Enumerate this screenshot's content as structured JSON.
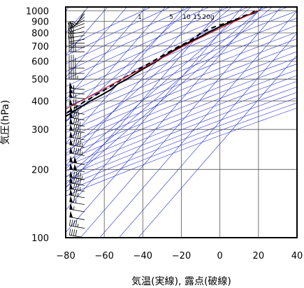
{
  "chart_data": {
    "type": "line",
    "title": "",
    "xlabel": "気温(実線), 露点(破線)",
    "ylabel": "気圧(hPa)",
    "xlim": [
      -80,
      40
    ],
    "ylim": [
      1040,
      100
    ],
    "y_scale": "log",
    "x_ticks": [
      -80,
      -60,
      -40,
      -20,
      0,
      20,
      40
    ],
    "x_tick_labels": [
      "−80",
      "−60",
      "−40",
      "−20",
      "0",
      "20",
      "40"
    ],
    "y_ticks": [
      100,
      200,
      300,
      400,
      500,
      600,
      700,
      800,
      900,
      1000
    ],
    "y_tick_labels": [
      "100",
      "200",
      "300",
      "400",
      "500",
      "600",
      "700",
      "800",
      "900",
      "1000"
    ],
    "grid": true,
    "mixing_ratio_labels": [
      "1",
      "5",
      "10",
      "15",
      "20g"
    ],
    "colors": {
      "frame": "#000000",
      "grid": "#555555",
      "background_lines": "#1f2bd6",
      "temperature": "#000000",
      "dewpoint": "#000000",
      "parcel": "#c0142c",
      "wind_barbs": "#000000"
    },
    "series": [
      {
        "key": "temperature",
        "style": "solid",
        "points": [
          [
            1000,
            19.5
          ],
          [
            975,
            18.5
          ],
          [
            950,
            15.5
          ],
          [
            925,
            14.0
          ],
          [
            900,
            11.0
          ],
          [
            875,
            9.0
          ],
          [
            850,
            7.0
          ],
          [
            825,
            5.5
          ],
          [
            800,
            3.5
          ],
          [
            775,
            2.0
          ],
          [
            750,
            0.0
          ],
          [
            725,
            -2.0
          ],
          [
            700,
            -4.0
          ],
          [
            650,
            -7.5
          ],
          [
            600,
            -10.0
          ],
          [
            550,
            -14.0
          ],
          [
            500,
            -17.5
          ],
          [
            475,
            -20.0
          ],
          [
            450,
            -21.0
          ],
          [
            425,
            -23.5
          ],
          [
            400,
            -26.5
          ],
          [
            375,
            -29.0
          ],
          [
            350,
            -31.5
          ],
          [
            325,
            -35.0
          ],
          [
            300,
            -39.0
          ],
          [
            275,
            -43.0
          ],
          [
            250,
            -47.5
          ],
          [
            225,
            -52.0
          ],
          [
            200,
            -57.0
          ],
          [
            190,
            -59.5
          ],
          [
            180,
            -59.5
          ],
          [
            170,
            -60.0
          ],
          [
            160,
            -58.0
          ],
          [
            150,
            -57.0
          ],
          [
            140,
            -57.5
          ],
          [
            130,
            -58.5
          ],
          [
            120,
            -60.0
          ],
          [
            110,
            -61.0
          ],
          [
            100,
            -60.5
          ]
        ]
      },
      {
        "key": "dewpoint",
        "style": "dashed",
        "points": [
          [
            1000,
            18.0
          ],
          [
            975,
            17.5
          ],
          [
            950,
            14.5
          ],
          [
            925,
            13.0
          ],
          [
            900,
            10.0
          ],
          [
            875,
            7.5
          ],
          [
            850,
            4.5
          ],
          [
            825,
            2.0
          ],
          [
            800,
            0.0
          ],
          [
            775,
            -0.5
          ],
          [
            750,
            -1.5
          ],
          [
            725,
            -3.0
          ],
          [
            700,
            -5.0
          ],
          [
            650,
            -8.5
          ],
          [
            600,
            -12.0
          ],
          [
            550,
            -16.0
          ],
          [
            500,
            -20.0
          ],
          [
            450,
            -24.0
          ],
          [
            400,
            -29.0
          ],
          [
            350,
            -34.0
          ],
          [
            320,
            -38.0
          ],
          [
            300,
            -41.0
          ],
          [
            285,
            -43.5
          ],
          [
            270,
            -45.5
          ],
          [
            270,
            -80.0
          ]
        ]
      },
      {
        "key": "parcel",
        "style": "solid",
        "points": [
          [
            1000,
            19.5
          ],
          [
            900,
            12.5
          ],
          [
            800,
            5.0
          ],
          [
            700,
            -3.0
          ],
          [
            600,
            -10.5
          ],
          [
            500,
            -20.0
          ],
          [
            400,
            -31.5
          ],
          [
            300,
            -46.5
          ],
          [
            250,
            -55.5
          ],
          [
            200,
            -65.5
          ],
          [
            170,
            -75.0
          ],
          [
            160,
            -80.0
          ]
        ]
      }
    ],
    "wind_barbs": [
      {
        "p": 1000,
        "dir": 210,
        "kt": 10
      },
      {
        "p": 970,
        "dir": 220,
        "kt": 10
      },
      {
        "p": 940,
        "dir": 230,
        "kt": 15
      },
      {
        "p": 910,
        "dir": 240,
        "kt": 20
      },
      {
        "p": 880,
        "dir": 250,
        "kt": 20
      },
      {
        "p": 850,
        "dir": 250,
        "kt": 25
      },
      {
        "p": 810,
        "dir": 260,
        "kt": 25
      },
      {
        "p": 780,
        "dir": 260,
        "kt": 30
      },
      {
        "p": 750,
        "dir": 260,
        "kt": 30
      },
      {
        "p": 720,
        "dir": 270,
        "kt": 30
      },
      {
        "p": 690,
        "dir": 270,
        "kt": 35
      },
      {
        "p": 660,
        "dir": 270,
        "kt": 35
      },
      {
        "p": 600,
        "dir": 270,
        "kt": 35
      },
      {
        "p": 560,
        "dir": 270,
        "kt": 40
      },
      {
        "p": 530,
        "dir": 270,
        "kt": 40
      },
      {
        "p": 500,
        "dir": 270,
        "kt": 45
      },
      {
        "p": 450,
        "dir": 275,
        "kt": 55
      },
      {
        "p": 430,
        "dir": 275,
        "kt": 60
      },
      {
        "p": 410,
        "dir": 275,
        "kt": 65
      },
      {
        "p": 380,
        "dir": 275,
        "kt": 70
      },
      {
        "p": 350,
        "dir": 280,
        "kt": 75
      },
      {
        "p": 330,
        "dir": 280,
        "kt": 80
      },
      {
        "p": 310,
        "dir": 280,
        "kt": 85
      },
      {
        "p": 290,
        "dir": 280,
        "kt": 85
      },
      {
        "p": 270,
        "dir": 280,
        "kt": 90
      },
      {
        "p": 250,
        "dir": 280,
        "kt": 95
      },
      {
        "p": 230,
        "dir": 280,
        "kt": 95
      },
      {
        "p": 210,
        "dir": 280,
        "kt": 100
      },
      {
        "p": 195,
        "dir": 280,
        "kt": 100
      },
      {
        "p": 180,
        "dir": 280,
        "kt": 95
      },
      {
        "p": 170,
        "dir": 280,
        "kt": 90
      },
      {
        "p": 160,
        "dir": 280,
        "kt": 85
      },
      {
        "p": 150,
        "dir": 280,
        "kt": 75
      },
      {
        "p": 140,
        "dir": 280,
        "kt": 65
      },
      {
        "p": 130,
        "dir": 280,
        "kt": 55
      },
      {
        "p": 120,
        "dir": 280,
        "kt": 50
      },
      {
        "p": 110,
        "dir": 280,
        "kt": 45
      },
      {
        "p": 100,
        "dir": 280,
        "kt": 40
      }
    ]
  }
}
